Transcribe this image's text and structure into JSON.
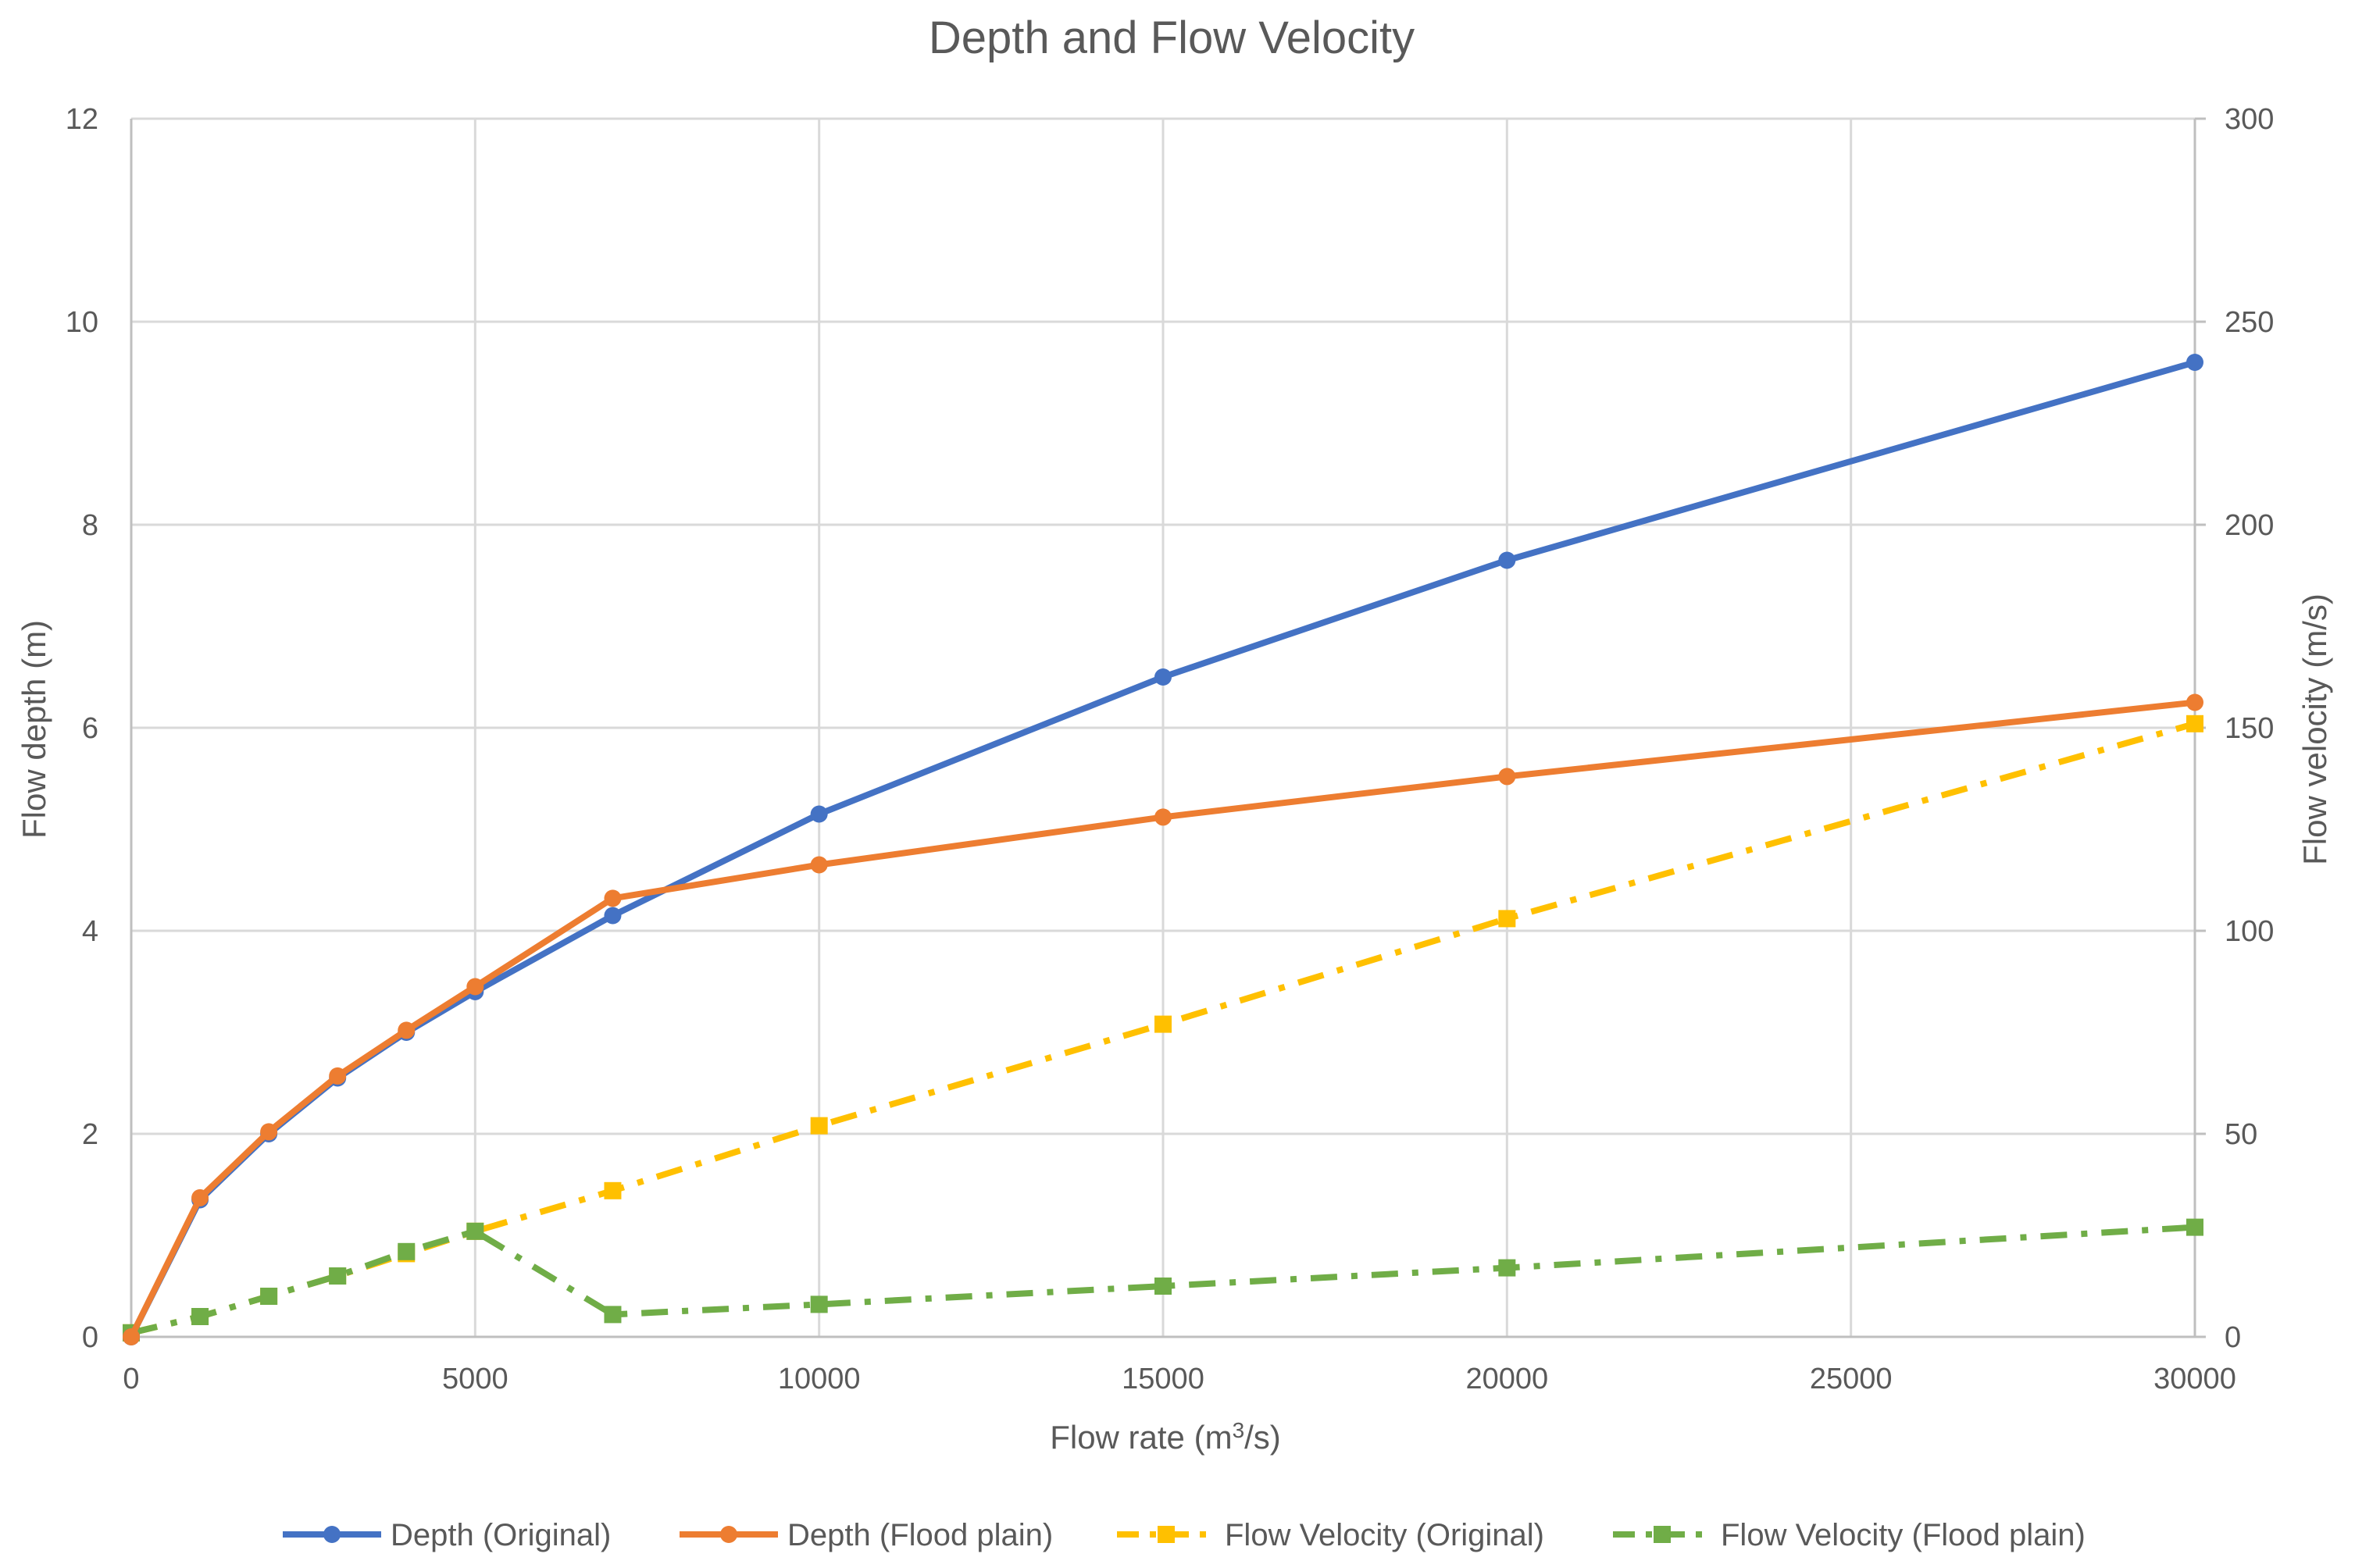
{
  "chart_data": {
    "type": "line",
    "title": "Depth and Flow Velocity",
    "xlabel_main": "Flow rate (m",
    "xlabel_sup": "3",
    "xlabel_tail": "/s)",
    "ylabel_left": "Flow depth (m)",
    "ylabel_right": "Flow velocity (m/s)",
    "xlim": [
      0,
      30000
    ],
    "ylim_left": [
      0,
      12
    ],
    "ylim_right": [
      0,
      300
    ],
    "x_ticks": [
      "0",
      "5000",
      "10000",
      "15000",
      "20000",
      "25000",
      "30000"
    ],
    "y_left_ticks": [
      "0",
      "2",
      "4",
      "6",
      "8",
      "10",
      "12"
    ],
    "y_right_ticks": [
      "0",
      "50",
      "100",
      "150",
      "200",
      "250",
      "300"
    ],
    "grid": true,
    "legend_position": "bottom",
    "series": [
      {
        "name": "Depth (Original)",
        "axis": "left",
        "color": "#4472C4",
        "marker": "circle",
        "dash": "solid",
        "x": [
          0,
          1000,
          2000,
          3000,
          4000,
          5000,
          7000,
          10000,
          15000,
          20000,
          30000
        ],
        "y": [
          0,
          1.35,
          2.0,
          2.55,
          3.0,
          3.4,
          4.15,
          5.15,
          6.5,
          7.65,
          9.6
        ]
      },
      {
        "name": "Depth (Flood plain)",
        "axis": "left",
        "color": "#ED7D31",
        "marker": "circle",
        "dash": "solid",
        "x": [
          0,
          1000,
          2000,
          3000,
          4000,
          5000,
          7000,
          10000,
          15000,
          20000,
          30000
        ],
        "y": [
          0,
          1.37,
          2.02,
          2.57,
          3.02,
          3.45,
          4.32,
          4.65,
          5.12,
          5.52,
          6.25
        ]
      },
      {
        "name": "Flow Velocity (Original)",
        "axis": "right",
        "color": "#FFC000",
        "marker": "square",
        "dash": "dashdot",
        "x": [
          0,
          1000,
          2000,
          3000,
          4000,
          5000,
          7000,
          10000,
          15000,
          20000,
          30000
        ],
        "y": [
          1,
          5,
          10,
          15,
          20.5,
          26,
          36,
          52,
          77,
          103,
          151
        ]
      },
      {
        "name": "Flow Velocity (Flood plain)",
        "axis": "right",
        "color": "#70AD47",
        "marker": "square",
        "dash": "dashdot",
        "x": [
          0,
          1000,
          2000,
          3000,
          4000,
          5000,
          7000,
          10000,
          15000,
          20000,
          30000
        ],
        "y": [
          1,
          5,
          10,
          15,
          21,
          26,
          5.5,
          8,
          12.5,
          17,
          27
        ]
      }
    ]
  }
}
